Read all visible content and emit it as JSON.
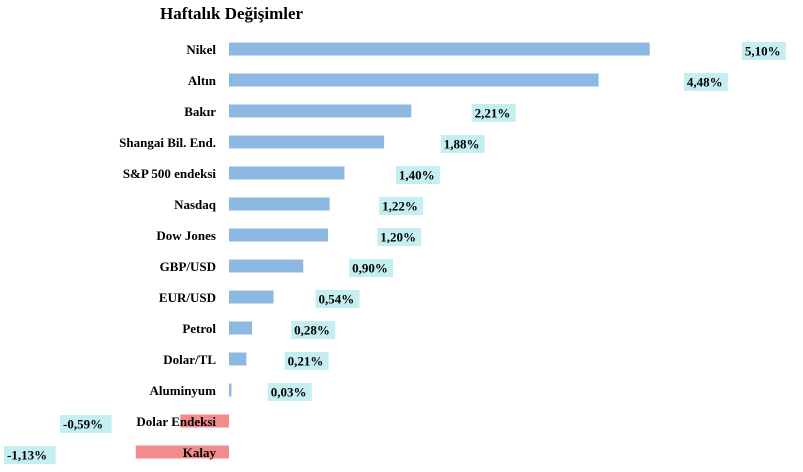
{
  "chart_data": {
    "type": "bar",
    "orientation": "horizontal",
    "title": "Haftalık Değişimler",
    "categories": [
      "Nikel",
      "Altın",
      "Bakır",
      "Shangai Bil. End.",
      "S&P 500 endeksi",
      "Nasdaq",
      "Dow Jones",
      "GBP/USD",
      "EUR/USD",
      "Petrol",
      "Dolar/TL",
      "Aluminyum",
      "Dolar Endeksi",
      "Kalay"
    ],
    "values": [
      5.1,
      4.48,
      2.21,
      1.88,
      1.4,
      1.22,
      1.2,
      0.9,
      0.54,
      0.28,
      0.21,
      0.03,
      -0.59,
      -1.13
    ],
    "data_labels": [
      "5,10%",
      "4,48%",
      "2,21%",
      "1,88%",
      "1,40%",
      "1,22%",
      "1,20%",
      "0,90%",
      "0,54%",
      "0,28%",
      "0,21%",
      "0,03%",
      "-0,59%",
      "-1,13%"
    ],
    "colors": {
      "positive": "#8DB8E2",
      "negative": "#F28B8B",
      "label_bg": "#C5EEF0"
    },
    "xlabel": "",
    "ylabel": "",
    "grid": false,
    "legend": "none"
  }
}
